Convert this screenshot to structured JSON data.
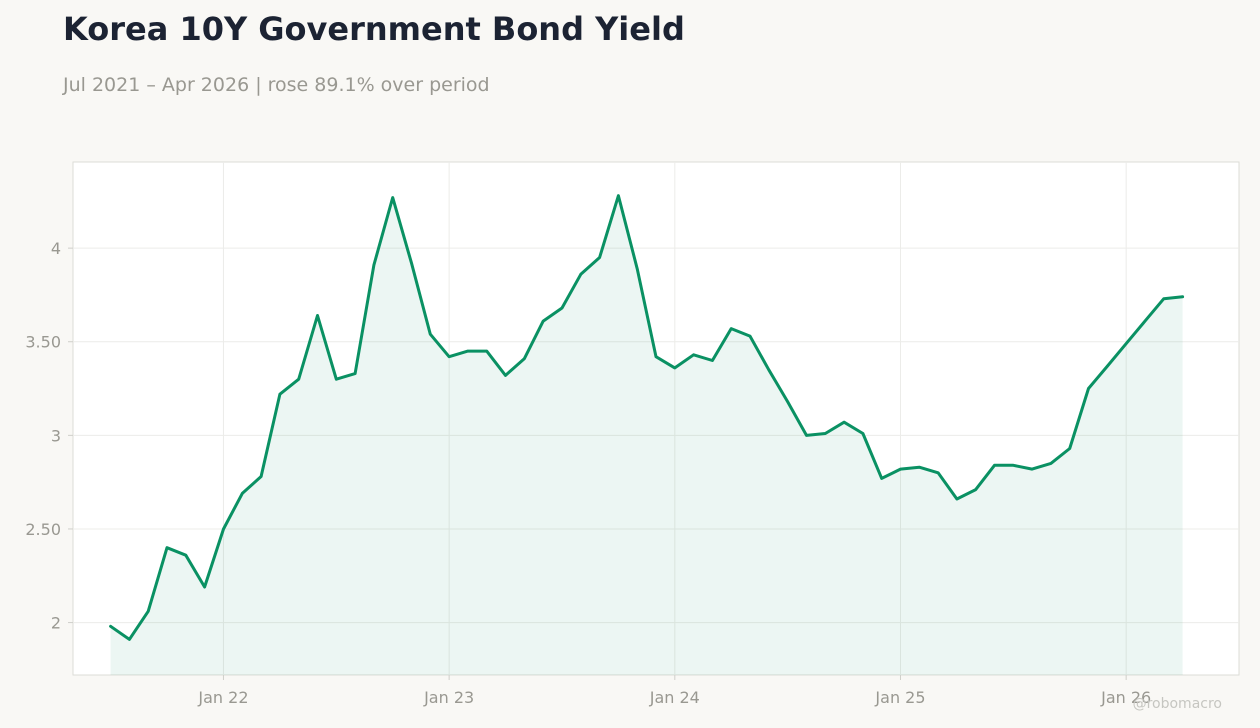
{
  "header": {
    "title": "Korea 10Y Government Bond Yield",
    "subtitle": "Jul 2021 – Apr 2026 | rose 89.1% over period"
  },
  "watermark": "@robomacro",
  "colors": {
    "line": "#0a9163",
    "fill": "#0a9163",
    "background": "#f9f8f5",
    "plot_background": "#ffffff",
    "grid": "#ecece9",
    "tick_text": "#999891"
  },
  "chart_data": {
    "type": "area",
    "title": "Korea 10Y Government Bond Yield",
    "subtitle": "Jul 2021 – Apr 2026 | rose 89.1% over period",
    "xlabel": "",
    "ylabel": "",
    "grid": true,
    "legend": "none",
    "x_ticks": [
      "Jan 22",
      "Jan 23",
      "Jan 24",
      "Jan 25",
      "Jan 26"
    ],
    "x_tick_dates": [
      "2022-01",
      "2023-01",
      "2024-01",
      "2025-01",
      "2026-01"
    ],
    "y_ticks": [
      2,
      2.5,
      3,
      3.5,
      4
    ],
    "y_tick_labels": [
      "2",
      "2.50",
      "3",
      "3.50",
      "4"
    ],
    "ylim": [
      1.72,
      4.46
    ],
    "xlim": [
      "2021-05",
      "2026-07"
    ],
    "series": [
      {
        "x": [
          "2021-07",
          "2021-08",
          "2021-09",
          "2021-10",
          "2021-11",
          "2021-12",
          "2022-01",
          "2022-02",
          "2022-03",
          "2022-04",
          "2022-05",
          "2022-06",
          "2022-07",
          "2022-08",
          "2022-09",
          "2022-10",
          "2022-11",
          "2022-12",
          "2023-01",
          "2023-02",
          "2023-03",
          "2023-04",
          "2023-05",
          "2023-06",
          "2023-07",
          "2023-08",
          "2023-09",
          "2023-10",
          "2023-11",
          "2023-12",
          "2024-01",
          "2024-02",
          "2024-03",
          "2024-04",
          "2024-05",
          "2024-06",
          "2024-07",
          "2024-08",
          "2024-09",
          "2024-10",
          "2024-11",
          "2024-12",
          "2025-01",
          "2025-02",
          "2025-03",
          "2025-04",
          "2025-05",
          "2025-06",
          "2025-07",
          "2025-08",
          "2025-09",
          "2025-10",
          "2025-11",
          "2025-12",
          "2026-01",
          "2026-02",
          "2026-03",
          "2026-04"
        ],
        "values": [
          1.98,
          1.91,
          2.06,
          2.4,
          2.36,
          2.19,
          2.5,
          2.69,
          2.78,
          3.22,
          3.3,
          3.64,
          3.3,
          3.33,
          3.91,
          4.27,
          3.92,
          3.54,
          3.42,
          3.45,
          3.45,
          3.32,
          3.41,
          3.61,
          3.68,
          3.86,
          3.95,
          4.28,
          3.89,
          3.42,
          3.36,
          3.43,
          3.4,
          3.57,
          3.53,
          3.35,
          3.18,
          3.0,
          3.01,
          3.07,
          3.01,
          2.77,
          2.82,
          2.83,
          2.8,
          2.66,
          2.71,
          2.84,
          2.84,
          2.82,
          2.85,
          2.93,
          3.25,
          3.37,
          3.49,
          3.61,
          3.73,
          3.74
        ]
      }
    ]
  }
}
